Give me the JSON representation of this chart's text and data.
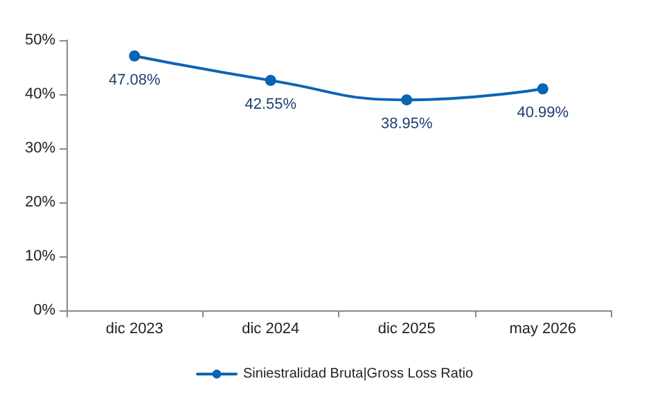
{
  "chart_data": {
    "type": "line",
    "categories": [
      "dic 2023",
      "dic 2024",
      "dic 2025",
      "may 2026"
    ],
    "series": [
      {
        "name": "Siniestralidad Bruta|Gross Loss Ratio",
        "color": "#0a64b4",
        "values": [
          47.08,
          42.55,
          38.95,
          40.99
        ],
        "value_labels": [
          "47.08%",
          "42.55%",
          "38.95%",
          "40.99%"
        ]
      }
    ],
    "ylim": [
      0,
      50
    ],
    "yticks": [
      {
        "value": 0,
        "label": "0%"
      },
      {
        "value": 10,
        "label": "10%"
      },
      {
        "value": 20,
        "label": "20%"
      },
      {
        "value": 30,
        "label": "30%"
      },
      {
        "value": 40,
        "label": "40%"
      },
      {
        "value": 50,
        "label": "50%"
      }
    ],
    "grid": false,
    "legend": "bottom",
    "marker": "circle",
    "line_style": "solid"
  }
}
